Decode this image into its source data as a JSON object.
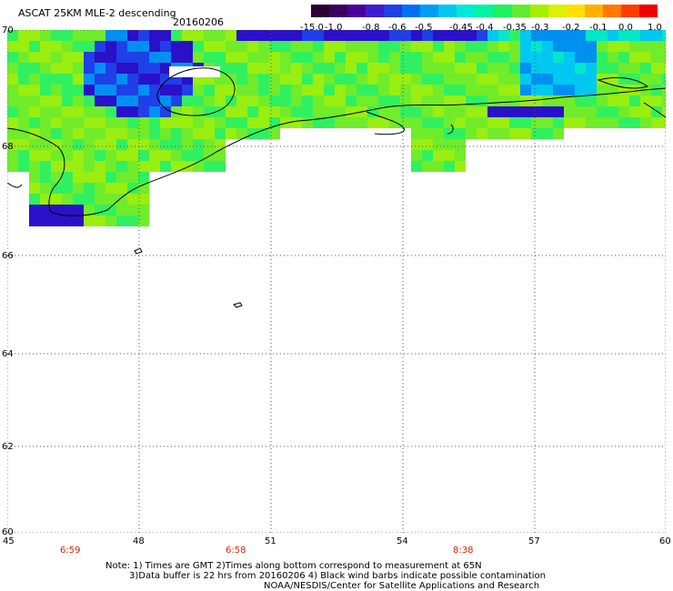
{
  "header": {
    "title": "ASCAT 25KM MLE-2 descending",
    "date": "20160206"
  },
  "colorbar": {
    "labels": [
      "-15.0",
      "-1.0",
      "-0.8",
      "-0.6",
      "-0.5",
      "-0.45",
      "-0.4",
      "-0.35",
      "-0.3",
      "-0.2",
      "-0.1",
      "0.0",
      "1.0"
    ],
    "colors": [
      "#2a0032",
      "#3a0060",
      "#4a009a",
      "#3f1bd0",
      "#1f3fe8",
      "#0070f0",
      "#009cf5",
      "#00c7f0",
      "#00e8d8",
      "#00f4a0",
      "#20f060",
      "#60ec30",
      "#a4f000",
      "#dcf000",
      "#ffe000",
      "#ffb000",
      "#ff7800",
      "#ff3c00",
      "#f00000"
    ]
  },
  "axes": {
    "lat_labels": [
      "70",
      "68",
      "66",
      "64",
      "62",
      "60"
    ],
    "lon_labels": [
      "45",
      "48",
      "51",
      "54",
      "57",
      "60"
    ]
  },
  "times": [
    "6:59",
    "6:58",
    "8:38"
  ],
  "notes": {
    "line1": "Note: 1) Times are GMT 2)Times along bottom correspond to measurement at 65N",
    "line2": "3)Data buffer is 22 hrs from 20160206 4) Black wind barbs indicate possible contamination",
    "line3": "NOAA/NESDIS/Center for Satellite Applications and Research"
  }
}
